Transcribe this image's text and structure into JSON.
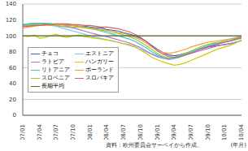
{
  "chart_data": {
    "type": "line",
    "x_label": "(年月)",
    "source": "資料：欧州委員会サーベイから作成。",
    "categories": [
      "07/01",
      null,
      null,
      "07/04",
      null,
      null,
      "07/07",
      null,
      null,
      "07/10",
      null,
      null,
      "08/01",
      null,
      null,
      "08/04",
      null,
      null,
      "08/07",
      null,
      null,
      "08/10",
      null,
      null,
      "09/01",
      null,
      null,
      "09/04",
      null,
      null,
      "09/07",
      null,
      null,
      "09/10",
      null,
      null,
      "10/01",
      null,
      null,
      "10/04"
    ],
    "ylim": [
      0,
      140
    ],
    "yticks": [
      0,
      20,
      40,
      60,
      80,
      100,
      120,
      140
    ],
    "grid": true,
    "legend": "lower left",
    "series": [
      {
        "name": "チェコ",
        "color": "#3366cc",
        "values": [
          112,
          113,
          114,
          114,
          115,
          115,
          114,
          114,
          113,
          113,
          112,
          112,
          111,
          110,
          110,
          108,
          107,
          106,
          104,
          102,
          100,
          97,
          93,
          88,
          83,
          79,
          76,
          75,
          76,
          78,
          80,
          82,
          84,
          86,
          87,
          88,
          89,
          90,
          92,
          94
        ]
      },
      {
        "name": "エストニア",
        "color": "#66ccff",
        "values": [
          113,
          114,
          115,
          115,
          114,
          113,
          112,
          110,
          108,
          106,
          104,
          102,
          100,
          98,
          97,
          95,
          93,
          92,
          90,
          88,
          86,
          83,
          80,
          77,
          74,
          72,
          70,
          71,
          73,
          76,
          79,
          82,
          85,
          88,
          90,
          92,
          94,
          96,
          98,
          100
        ]
      },
      {
        "name": "ラトビア",
        "color": "#cc66cc",
        "values": [
          114,
          115,
          116,
          116,
          115,
          114,
          113,
          112,
          111,
          110,
          108,
          106,
          104,
          102,
          100,
          99,
          97,
          95,
          93,
          91,
          88,
          85,
          81,
          77,
          74,
          72,
          71,
          72,
          74,
          76,
          78,
          80,
          82,
          84,
          86,
          88,
          89,
          90,
          92,
          94
        ]
      },
      {
        "name": "ハンガリー",
        "color": "#cccc00",
        "values": [
          100,
          99,
          101,
          97,
          98,
          100,
          102,
          99,
          98,
          100,
          101,
          99,
          98,
          97,
          96,
          95,
          94,
          92,
          90,
          89,
          86,
          82,
          78,
          73,
          70,
          67,
          65,
          63,
          64,
          66,
          69,
          72,
          75,
          78,
          81,
          84,
          86,
          88,
          91,
          95
        ]
      },
      {
        "name": "リトアニア",
        "color": "#33cccc",
        "values": [
          114,
          115,
          115,
          116,
          116,
          115,
          115,
          114,
          114,
          113,
          112,
          111,
          110,
          108,
          106,
          104,
          102,
          100,
          98,
          96,
          93,
          89,
          85,
          80,
          76,
          73,
          72,
          72,
          74,
          77,
          80,
          83,
          85,
          87,
          89,
          91,
          92,
          93,
          95,
          97
        ]
      },
      {
        "name": "ポーランド",
        "color": "#ff9933",
        "values": [
          110,
          111,
          112,
          113,
          113,
          114,
          114,
          114,
          113,
          113,
          112,
          111,
          110,
          109,
          108,
          107,
          106,
          104,
          103,
          101,
          98,
          95,
          91,
          86,
          82,
          79,
          78,
          79,
          81,
          83,
          86,
          88,
          90,
          92,
          93,
          94,
          95,
          96,
          97,
          99
        ]
      },
      {
        "name": "スロベニア",
        "color": "#99cc33",
        "values": [
          113,
          113,
          114,
          114,
          114,
          113,
          113,
          112,
          112,
          111,
          111,
          110,
          109,
          108,
          107,
          106,
          104,
          103,
          101,
          99,
          96,
          92,
          88,
          83,
          78,
          74,
          72,
          73,
          75,
          78,
          81,
          84,
          87,
          89,
          91,
          92,
          93,
          94,
          96,
          98
        ]
      },
      {
        "name": "スロバキア",
        "color": "#cc6666",
        "values": [
          112,
          112,
          113,
          113,
          114,
          114,
          115,
          115,
          115,
          114,
          114,
          113,
          113,
          112,
          111,
          111,
          110,
          109,
          107,
          105,
          102,
          98,
          93,
          87,
          81,
          77,
          74,
          73,
          74,
          76,
          78,
          81,
          84,
          86,
          88,
          90,
          92,
          94,
          96,
          98
        ]
      },
      {
        "name": "長期平均",
        "color": "#556b2f",
        "values": [
          100,
          100,
          100,
          100,
          100,
          100,
          100,
          100,
          100,
          100,
          100,
          100,
          100,
          100,
          100,
          100,
          100,
          100,
          100,
          100,
          100,
          100,
          100,
          100,
          100,
          100,
          100,
          100,
          100,
          100,
          100,
          100,
          100,
          100,
          100,
          100,
          100,
          100,
          100,
          100
        ]
      }
    ]
  }
}
